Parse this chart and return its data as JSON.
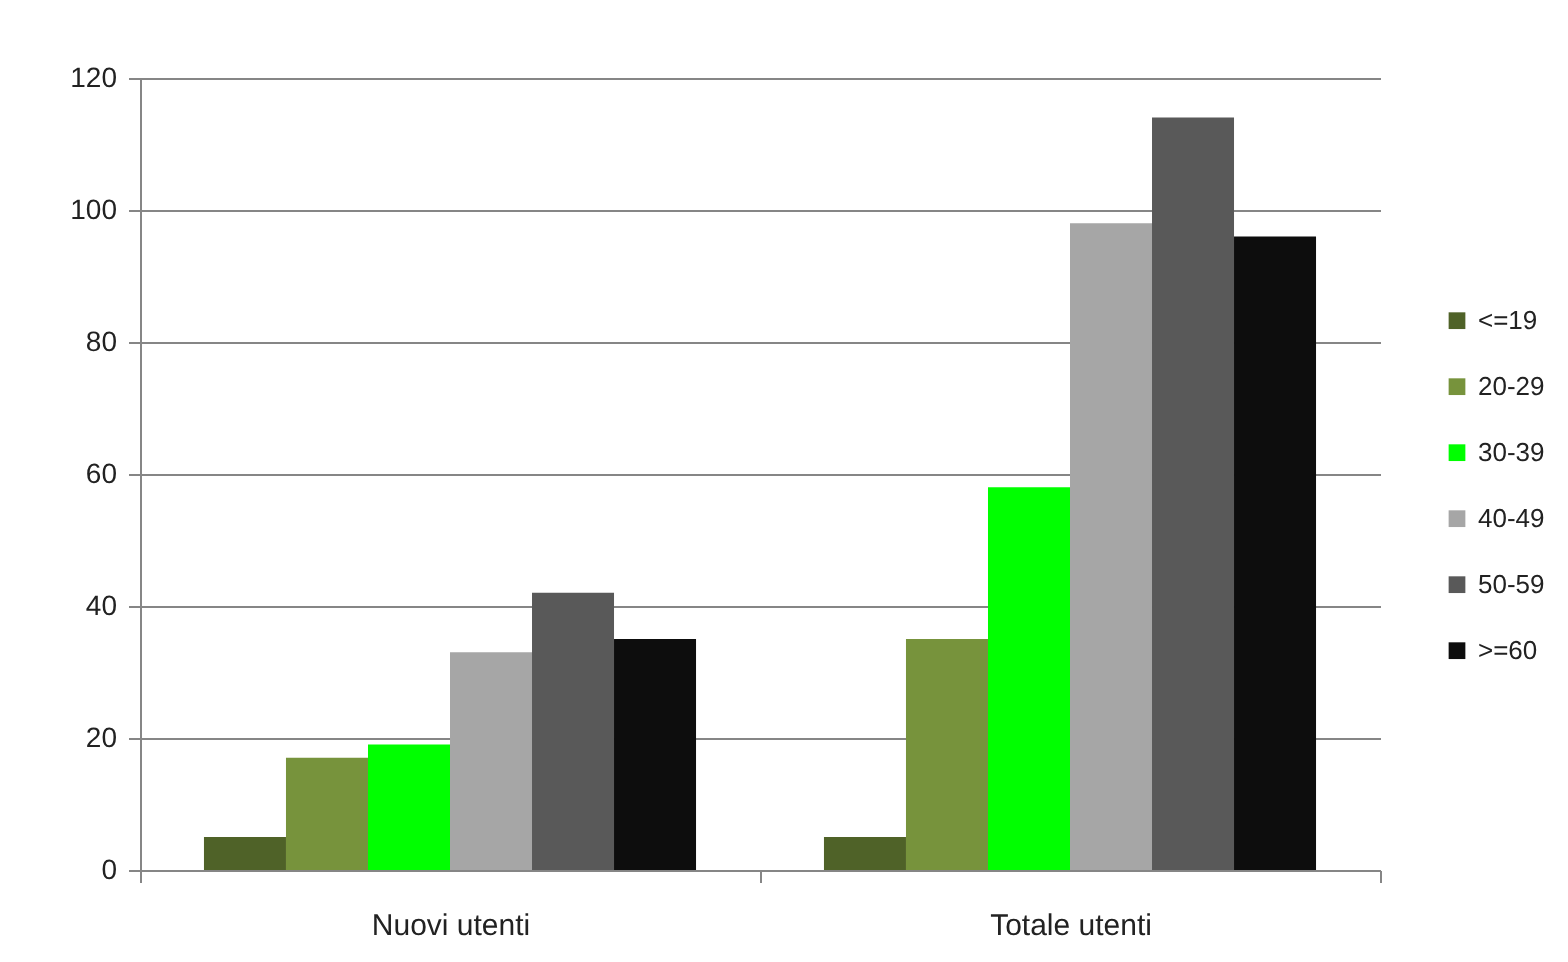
{
  "chart_data": {
    "type": "bar",
    "categories": [
      "Nuovi utenti",
      "Totale utenti"
    ],
    "series": [
      {
        "name": "<=19",
        "color": "#4f6228",
        "values": [
          5,
          5
        ]
      },
      {
        "name": "20-29",
        "color": "#77933c",
        "values": [
          17,
          35
        ]
      },
      {
        "name": "30-39",
        "color": "#00ff00",
        "values": [
          19,
          58
        ]
      },
      {
        "name": "40-49",
        "color": "#a6a6a6",
        "values": [
          33,
          98
        ]
      },
      {
        "name": "50-59",
        "color": "#595959",
        "values": [
          42,
          114
        ]
      },
      {
        "name": ">=60",
        "color": "#0d0d0d",
        "values": [
          35,
          96
        ]
      }
    ],
    "ylim": [
      0,
      120
    ],
    "yticks": [
      0,
      20,
      40,
      60,
      80,
      100,
      120
    ],
    "grid": "y",
    "legend": "right"
  }
}
